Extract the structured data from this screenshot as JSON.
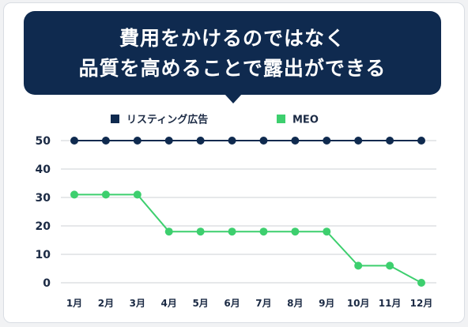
{
  "headline": {
    "line1": "費用をかけるのではなく",
    "line2": "品質を高めることで露出ができる"
  },
  "colors": {
    "navy": "#0f2a4f",
    "green": "#3dcf6e",
    "grid": "#d6d9de",
    "axis_text": "#1b2a44"
  },
  "chart_data": {
    "type": "line",
    "categories": [
      "1月",
      "2月",
      "3月",
      "4月",
      "5月",
      "6月",
      "7月",
      "8月",
      "9月",
      "10月",
      "11月",
      "12月"
    ],
    "series": [
      {
        "name": "リスティング広告",
        "color": "#0f2a4f",
        "marker": "square",
        "values": [
          50,
          50,
          50,
          50,
          50,
          50,
          50,
          50,
          50,
          50,
          50,
          50
        ]
      },
      {
        "name": "MEO",
        "color": "#3dcf6e",
        "marker": "square",
        "values": [
          31,
          31,
          31,
          18,
          18,
          18,
          18,
          18,
          18,
          6,
          6,
          0
        ]
      }
    ],
    "yticks": [
      0,
      10,
      20,
      30,
      40,
      50
    ],
    "ylim": [
      0,
      50
    ],
    "grid": true,
    "legend_position": "top-center"
  }
}
